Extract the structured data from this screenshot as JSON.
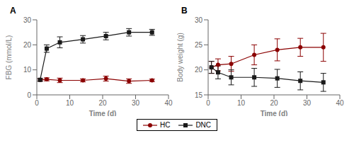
{
  "chart_data": [
    {
      "type": "line",
      "title": "A",
      "x_label": "Time (d)",
      "y_label": "FBG (mmol/L)",
      "x": [
        1,
        3,
        7,
        14,
        21,
        28,
        35
      ],
      "series": [
        {
          "name": "HC",
          "color": "#8B0000",
          "marker": "circle",
          "line_style": "solid",
          "values": [
            6.0,
            6.2,
            5.8,
            5.8,
            6.5,
            5.5,
            5.8
          ],
          "errors": [
            0.5,
            0.6,
            0.9,
            0.6,
            1.0,
            0.9,
            0.5
          ]
        },
        {
          "name": "DNC",
          "color": "#1a1a1a",
          "marker": "square",
          "line_style": "solid",
          "values": [
            6.0,
            18.5,
            21.0,
            22.2,
            23.5,
            25.0,
            25.0
          ],
          "errors": [
            0.5,
            1.5,
            2.2,
            1.5,
            1.5,
            1.5,
            1.2
          ]
        }
      ],
      "xlim": [
        0,
        40
      ],
      "xticks": [
        0,
        10,
        20,
        30,
        40
      ],
      "ylim": [
        0,
        30
      ],
      "yticks": [
        0,
        10,
        20,
        30
      ],
      "grid": false,
      "legend": "bottom"
    },
    {
      "type": "line",
      "title": "B",
      "x_label": "Time (d)",
      "y_label": "Body weight (g)",
      "x": [
        1,
        3,
        7,
        14,
        21,
        28,
        35
      ],
      "series": [
        {
          "name": "HC",
          "color": "#8B0000",
          "marker": "circle",
          "line_style": "solid",
          "values": [
            20.5,
            21.0,
            21.2,
            23.0,
            24.0,
            24.5,
            24.5
          ],
          "errors": [
            1.2,
            1.2,
            1.5,
            2.0,
            2.2,
            1.8,
            2.8
          ]
        },
        {
          "name": "DNC",
          "color": "#1a1a1a",
          "marker": "square",
          "line_style": "solid",
          "values": [
            20.5,
            19.5,
            18.5,
            18.5,
            18.3,
            17.8,
            17.5
          ],
          "errors": [
            1.2,
            1.3,
            1.5,
            1.8,
            1.8,
            1.8,
            1.8
          ]
        }
      ],
      "xlim": [
        0,
        40
      ],
      "xticks": [
        0,
        10,
        20,
        30,
        40
      ],
      "ylim": [
        15,
        30
      ],
      "yticks": [
        15,
        20,
        25,
        30
      ],
      "grid": false,
      "legend": "bottom"
    }
  ]
}
